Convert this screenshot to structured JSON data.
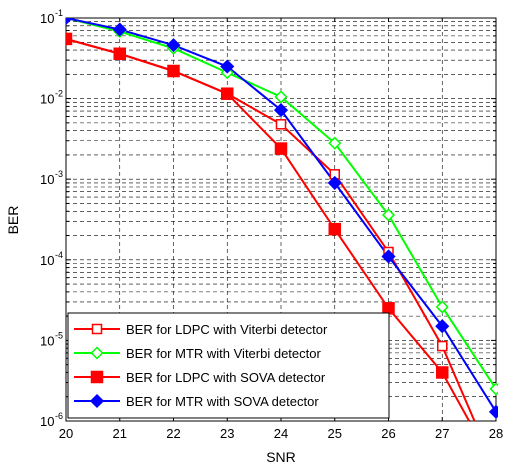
{
  "chart_data": {
    "type": "line",
    "title": "",
    "xlabel": "SNR",
    "ylabel": "BER",
    "xlim": [
      20,
      28
    ],
    "ylim": [
      1e-06,
      0.1
    ],
    "yscale": "log",
    "x_ticks": [
      "20",
      "21",
      "22",
      "23",
      "24",
      "25",
      "26",
      "27",
      "28"
    ],
    "y_ticks": [
      {
        "base": "10",
        "exp": "-6"
      },
      {
        "base": "10",
        "exp": "-5"
      },
      {
        "base": "10",
        "exp": "-4"
      },
      {
        "base": "10",
        "exp": "-3"
      },
      {
        "base": "10",
        "exp": "-2"
      },
      {
        "base": "10",
        "exp": "-1"
      }
    ],
    "grid": true,
    "legend_position": "bottom-left",
    "series": [
      {
        "name": "BER for LDPC with Viterbi detector",
        "color": "#ff0000",
        "marker": "square-open",
        "x": [
          20,
          21,
          22,
          23,
          24,
          25,
          26,
          27,
          27.6
        ],
        "y": [
          0.055,
          0.036,
          0.022,
          0.0115,
          0.0048,
          0.00115,
          0.000125,
          8.5e-06,
          1e-06
        ]
      },
      {
        "name": "BER for MTR with Viterbi detector",
        "color": "#00ff00",
        "marker": "diamond-open",
        "x": [
          20,
          21,
          22,
          23,
          24,
          25,
          26,
          27,
          28
        ],
        "y": [
          0.1,
          0.068,
          0.042,
          0.021,
          0.0105,
          0.0028,
          0.00036,
          2.6e-05,
          2.5e-06
        ]
      },
      {
        "name": "BER for LDPC with SOVA detector",
        "color": "#ff0000",
        "marker": "square-filled",
        "x": [
          20,
          21,
          22,
          23,
          24,
          25,
          26,
          27,
          27.5
        ],
        "y": [
          0.055,
          0.036,
          0.022,
          0.0115,
          0.0024,
          0.00024,
          2.5e-05,
          4e-06,
          1e-06
        ]
      },
      {
        "name": "BER for MTR with SOVA detector",
        "color": "#0000ff",
        "marker": "diamond-filled",
        "x": [
          20,
          21,
          22,
          23,
          24,
          25,
          26,
          27,
          28
        ],
        "y": [
          0.1,
          0.072,
          0.046,
          0.025,
          0.0072,
          0.0009,
          0.00011,
          1.5e-05,
          1.3e-06
        ]
      }
    ]
  }
}
